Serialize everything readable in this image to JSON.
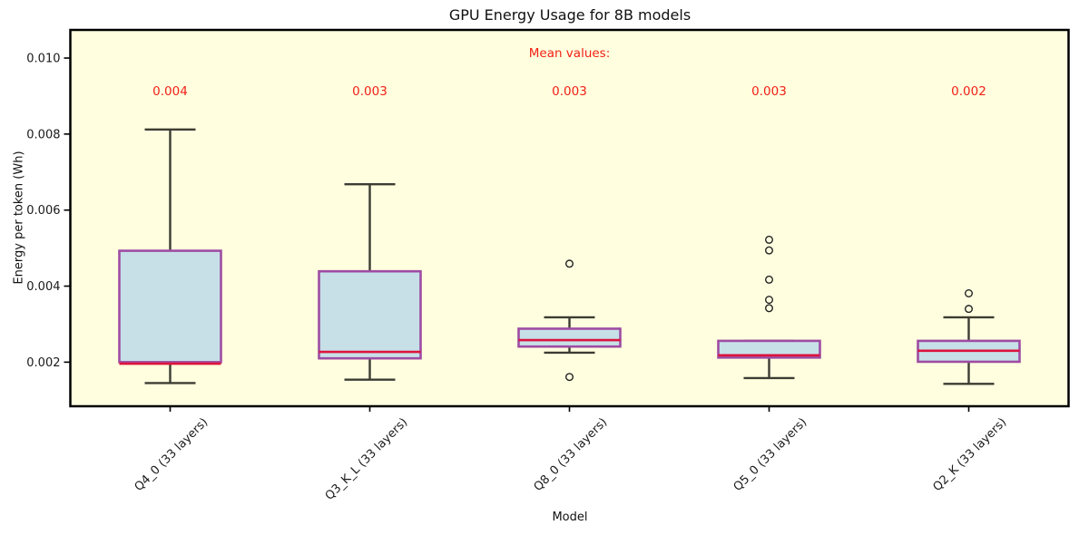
{
  "figure": {
    "title": "GPU Energy Usage for 8B models",
    "x_axis_label": "Model",
    "y_axis_label": "Energy per token (Wh)",
    "mean_header": "Mean values:"
  },
  "colors": {
    "plot_background": "#ffffe0",
    "box_fill": "#c7e0e8",
    "box_edge": "#9e4ca3",
    "median": "#dc143c",
    "whisker": "#3c3c32",
    "flier": "#222222",
    "annotation_red": "#f32015",
    "spine": "#000000",
    "tick_text": "#1a1a1a"
  },
  "chart_data": {
    "type": "boxplot",
    "title": "GPU Energy Usage for 8B models",
    "xlabel": "Model",
    "ylabel": "Energy per token (Wh)",
    "ylim": [
      0.00084,
      0.01074
    ],
    "grid": false,
    "y_ticks": [
      0.002,
      0.004,
      0.006,
      0.008,
      0.01
    ],
    "y_tick_labels": [
      "0.002",
      "0.004",
      "0.006",
      "0.008",
      "0.010"
    ],
    "categories": [
      "Q4_0 (33 layers)",
      "Q3_K_L (33 layers)",
      "Q8_0 (33 layers)",
      "Q5_0 (33 layers)",
      "Q2_K (33 layers)"
    ],
    "mean_header_text": "Mean values:",
    "mean_header_y": 0.01012,
    "mean_labels_y": 0.00912,
    "series": [
      {
        "label": "Q4_0 (33 layers)",
        "whislo": 0.00145,
        "q1": 0.002,
        "med": 0.00196,
        "q3": 0.00493,
        "whishi": 0.00812,
        "fliers": [],
        "mean_label": "0.004"
      },
      {
        "label": "Q3_K_L (33 layers)",
        "whislo": 0.00154,
        "q1": 0.0021,
        "med": 0.00227,
        "q3": 0.00439,
        "whishi": 0.00668,
        "fliers": [],
        "mean_label": "0.003"
      },
      {
        "label": "Q8_0 (33 layers)",
        "whislo": 0.00225,
        "q1": 0.00241,
        "med": 0.00258,
        "q3": 0.00288,
        "whishi": 0.00318,
        "fliers": [
          0.00459,
          0.00161
        ],
        "mean_label": "0.003"
      },
      {
        "label": "Q5_0 (33 layers)",
        "whislo": 0.00158,
        "q1": 0.00212,
        "med": 0.00218,
        "q3": 0.00256,
        "whishi": 0.00256,
        "fliers": [
          0.00522,
          0.00494,
          0.00417,
          0.00364,
          0.00342
        ],
        "mean_label": "0.003"
      },
      {
        "label": "Q2_K (33 layers)",
        "whislo": 0.00143,
        "q1": 0.00201,
        "med": 0.0023,
        "q3": 0.00256,
        "whishi": 0.00318,
        "fliers": [
          0.00381,
          0.0034
        ],
        "mean_label": "0.002"
      }
    ]
  }
}
